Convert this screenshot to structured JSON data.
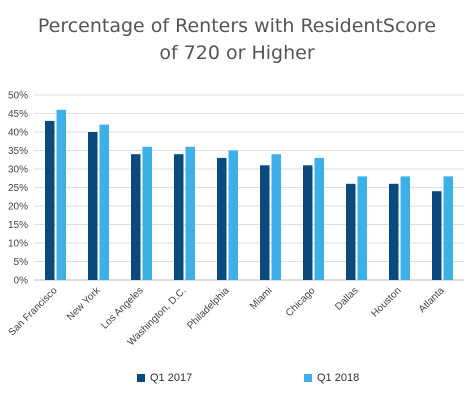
{
  "chart_data": {
    "type": "bar",
    "title_line1": "Percentage of Renters with ResidentScore",
    "title_line2": "of 720 or Higher",
    "categories": [
      "San Francisco",
      "New York",
      "Los Angeles",
      "Washington, D.C.",
      "Philadelphia",
      "Miami",
      "Chicago",
      "Dallas",
      "Houston",
      "Atlanta"
    ],
    "series": [
      {
        "name": "Q1 2017",
        "color": "#0a4a7d",
        "values": [
          43,
          40,
          34,
          34,
          33,
          31,
          31,
          26,
          26,
          24
        ]
      },
      {
        "name": "Q1 2018",
        "color": "#3db0e8",
        "values": [
          46,
          42,
          36,
          36,
          35,
          34,
          33,
          28,
          28,
          28
        ]
      }
    ],
    "yticks": [
      "0%",
      "5%",
      "10%",
      "15%",
      "20%",
      "25%",
      "30%",
      "35%",
      "40%",
      "45%",
      "50%"
    ],
    "ylim": [
      0,
      50
    ],
    "grid": true,
    "legend_position": "bottom"
  }
}
